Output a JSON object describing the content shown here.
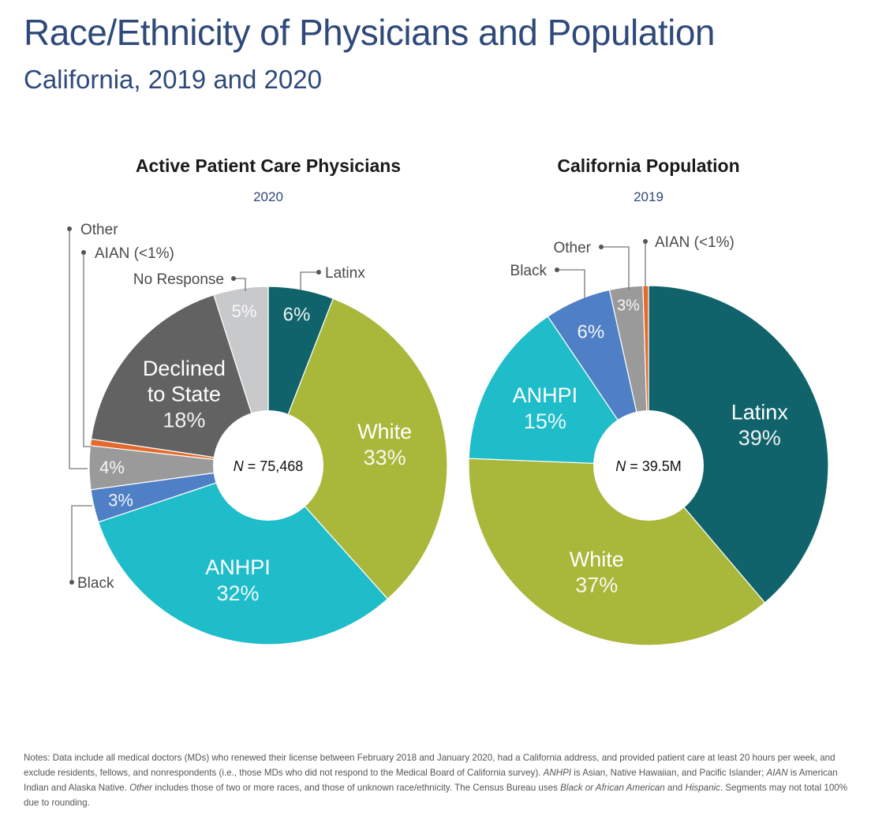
{
  "header": {
    "title": "Race/Ethnicity of Physicians and Population",
    "subtitle": "California, 2019 and 2020"
  },
  "chart_data": [
    {
      "type": "pie",
      "title": "Active Patient Care Physicians",
      "subtitle": "2020",
      "center_label": "N = 75,468",
      "center_label_prefix": "N",
      "center_label_value": " = 75,468",
      "slices": [
        {
          "name": "Latinx",
          "value": 6,
          "label": "6%",
          "color": "#11636b"
        },
        {
          "name": "White",
          "value": 33,
          "label": "33%",
          "color": "#a9b73a"
        },
        {
          "name": "ANHPI",
          "value": 32,
          "label": "32%",
          "color": "#1fbcc9"
        },
        {
          "name": "Black",
          "value": 3,
          "label": "3%",
          "color": "#4f7fc4"
        },
        {
          "name": "Other",
          "value": 4,
          "label": "4%",
          "color": "#9a9a9a"
        },
        {
          "name": "AIAN",
          "value": 0.6,
          "label": "(<1%)",
          "color": "#e36a2c"
        },
        {
          "name": "Declined to State",
          "value": 18,
          "label": "18%",
          "color": "#626262"
        },
        {
          "name": "No Response",
          "value": 5,
          "label": "5%",
          "color": "#c8c9cb"
        }
      ]
    },
    {
      "type": "pie",
      "title": "California Population",
      "subtitle": "2019",
      "center_label": "N = 39.5M",
      "center_label_prefix": "N",
      "center_label_value": " = 39.5M",
      "slices": [
        {
          "name": "Latinx",
          "value": 39,
          "label": "39%",
          "color": "#11636b"
        },
        {
          "name": "White",
          "value": 37,
          "label": "37%",
          "color": "#a9b73a"
        },
        {
          "name": "ANHPI",
          "value": 15,
          "label": "15%",
          "color": "#1fbcc9"
        },
        {
          "name": "Black",
          "value": 6,
          "label": "6%",
          "color": "#4f7fc4"
        },
        {
          "name": "Other",
          "value": 3,
          "label": "3%",
          "color": "#9a9a9a"
        },
        {
          "name": "AIAN",
          "value": 0.5,
          "label": "(<1%)",
          "color": "#e36a2c"
        }
      ]
    }
  ],
  "notes": {
    "t1": "Notes: Data include all medical doctors (MDs) who renewed their license between February 2018 and January 2020, had a California address, and provided patient care at least 20 hours per week, and exclude residents, fellows, and nonrespondents (i.e., those MDs who did not respond to the Medical Board of California survey). ",
    "i1": "ANHPI",
    "t2": " is Asian, Native Hawaiian, and Pacific Islander; ",
    "i2": "AIAN",
    "t3": " is American Indian and Alaska Native. ",
    "i3": "Other",
    "t4": " includes those of two or more races, and those of unknown race/ethnicity. The Census Bureau uses ",
    "i4": "Black or African American",
    "t5": " and ",
    "i5": "Hispanic",
    "t6": ". Segments may not total 100% due to rounding."
  }
}
